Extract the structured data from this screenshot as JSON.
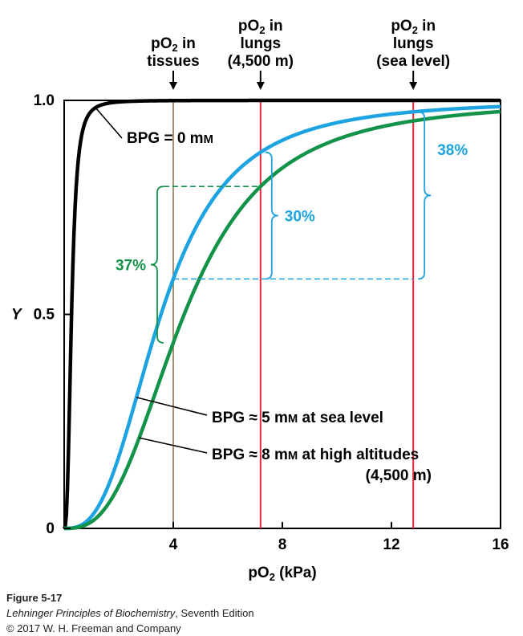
{
  "chart_data": {
    "type": "line",
    "xlabel": "pO₂ (kPa)",
    "ylabel": "Y",
    "xlim": [
      0,
      16
    ],
    "ylim": [
      0,
      1
    ],
    "xticks": [
      {
        "value": 4,
        "label": "4"
      },
      {
        "value": 8,
        "label": "8"
      },
      {
        "value": 12,
        "label": "12"
      },
      {
        "value": 16,
        "label": "16"
      }
    ],
    "yticks": [
      {
        "value": 0,
        "label": "0"
      },
      {
        "value": 0.5,
        "label": "0.5"
      },
      {
        "value": 1,
        "label": "1.0"
      }
    ],
    "series": [
      {
        "name": "BPG = 0 mM",
        "color": "#000000",
        "p50": 0.27,
        "n": 2.8
      },
      {
        "name": "BPG ≈ 5 mM at sea level",
        "color": "#1ca3e0",
        "p50": 3.55,
        "n": 2.8
      },
      {
        "name": "BPG ≈ 8 mM at high altitudes (4,500 m)",
        "color": "#13934a",
        "p50": 4.4,
        "n": 2.8
      }
    ],
    "vlines": [
      {
        "x": 4.0,
        "color": "#a8916e",
        "label": [
          "pO₂ in",
          "tissues"
        ]
      },
      {
        "x": 7.2,
        "color": "#e3253f",
        "label": [
          "pO₂ in",
          "lungs",
          "(4,500 m)"
        ]
      },
      {
        "x": 12.8,
        "color": "#e3253f",
        "label": [
          "pO₂ in",
          "lungs",
          "(sea level)"
        ]
      }
    ],
    "annotations": {
      "green_delta": "37%",
      "blue_delta_altitude": "30%",
      "blue_delta_sea_level": "38%"
    },
    "labels": {
      "bpg0": "BPG = 0 mM",
      "bpg5": "BPG ≈ 5 mM at sea level",
      "bpg8": "BPG ≈ 8 mM at high altitudes",
      "bpg8_line2": "(4,500 m)"
    }
  },
  "caption": {
    "figure": "Figure 5-17",
    "book_title": "Lehninger Principles of Biochemistry",
    "book_edition": ", Seventh Edition",
    "copyright": "© 2017 W. H. Freeman and Company"
  }
}
